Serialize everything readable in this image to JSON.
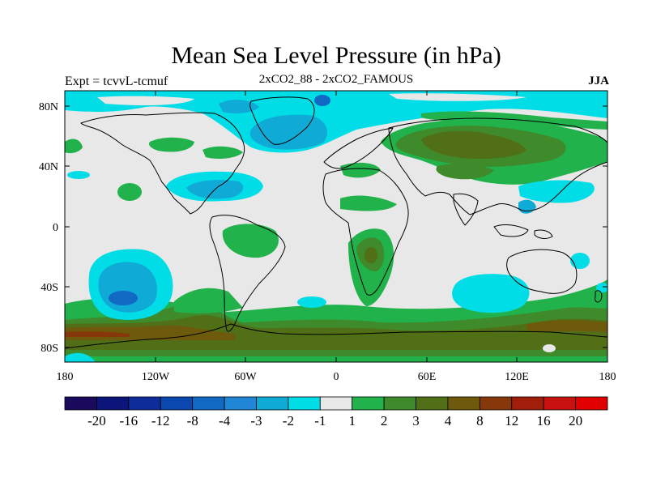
{
  "title": "Mean Sea Level Pressure (in hPa)",
  "left_label": "Expt = tcvvL-tcmuf",
  "subtitle": "2xCO2_88 - 2xCO2_FAMOUS",
  "season": "JJA",
  "lon_ticks": [
    "180",
    "120W",
    "60W",
    "0",
    "60E",
    "120E",
    "180"
  ],
  "lat_ticks": [
    "80N",
    "40N",
    "0",
    "40S",
    "80S"
  ],
  "colorbar": {
    "labels": [
      "-20",
      "-16",
      "-12",
      "-8",
      "-4",
      "-3",
      "-2",
      "-1",
      "1",
      "2",
      "3",
      "4",
      "8",
      "12",
      "16",
      "20"
    ],
    "colors": [
      "#1a0a5e",
      "#0d157a",
      "#0f2d9a",
      "#0b48b0",
      "#1169c4",
      "#2186d6",
      "#10aad6",
      "#00dde6",
      "#e8e8e8",
      "#22b24b",
      "#3f8a2b",
      "#506f16",
      "#6e5a0c",
      "#86380a",
      "#a11e0a",
      "#c81210",
      "#e00000"
    ]
  },
  "chart_data": {
    "type": "heatmap",
    "map_type": "contour-filled world map",
    "projection": "cylindrical equidistant",
    "lon_range": [
      -180,
      180
    ],
    "lat_range": [
      -90,
      90
    ],
    "contour_levels": [
      -20,
      -16,
      -12,
      -8,
      -4,
      -3,
      -2,
      -1,
      1,
      2,
      3,
      4,
      8,
      12,
      16,
      20
    ],
    "units": "hPa",
    "anomaly_regions": [
      {
        "lon": -60,
        "lat": 60,
        "value": -3
      },
      {
        "lon": -75,
        "lat": 25,
        "value": -2
      },
      {
        "lon": -145,
        "lat": -35,
        "value": -4
      },
      {
        "lon": 110,
        "lat": -40,
        "value": -2
      },
      {
        "lon": 120,
        "lat": 17,
        "value": -2
      },
      {
        "lon": 20,
        "lat": 80,
        "value": -1
      },
      {
        "lon": 70,
        "lat": 50,
        "value": 4
      },
      {
        "lon": -70,
        "lat": -10,
        "value": 2
      },
      {
        "lon": 25,
        "lat": -15,
        "value": 3
      },
      {
        "lon": 0,
        "lat": -70,
        "value": 4
      },
      {
        "lon": -170,
        "lat": -70,
        "value": 8
      }
    ]
  }
}
